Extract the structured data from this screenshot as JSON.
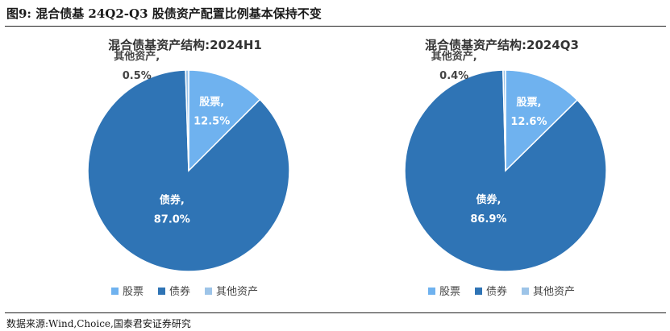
{
  "figure_title": "图9:  混合债基 24Q2-Q3 股债资产配置比例基本保持不变",
  "source": "数据来源:Wind,Choice,国泰君安证券研究",
  "chart_data": [
    {
      "type": "pie",
      "title": "混合债基资产结构:2024H1",
      "slices": [
        {
          "category": "股票",
          "value": 12.5,
          "label_name": "股票,",
          "label_value": "12.5%"
        },
        {
          "category": "债券",
          "value": 87.0,
          "label_name": "债券,",
          "label_value": "87.0%"
        },
        {
          "category": "其他资产",
          "value": 0.5,
          "label_name": "其他资产,",
          "label_value": "0.5%"
        }
      ],
      "legend": [
        "股票",
        "债券",
        "其他资产"
      ],
      "legend_position": "bottom"
    },
    {
      "type": "pie",
      "title": "混合债基资产结构:2024Q3",
      "slices": [
        {
          "category": "股票",
          "value": 12.6,
          "label_name": "股票,",
          "label_value": "12.6%"
        },
        {
          "category": "债券",
          "value": 86.9,
          "label_name": "债券,",
          "label_value": "86.9%"
        },
        {
          "category": "其他资产",
          "value": 0.4,
          "label_name": "其他资产,",
          "label_value": "0.4%"
        }
      ],
      "legend": [
        "股票",
        "债券",
        "其他资产"
      ],
      "legend_position": "bottom"
    }
  ],
  "colors": {
    "股票": "#6fb2ef",
    "债券": "#2f74b5",
    "其他资产": "#9dc4e8"
  }
}
